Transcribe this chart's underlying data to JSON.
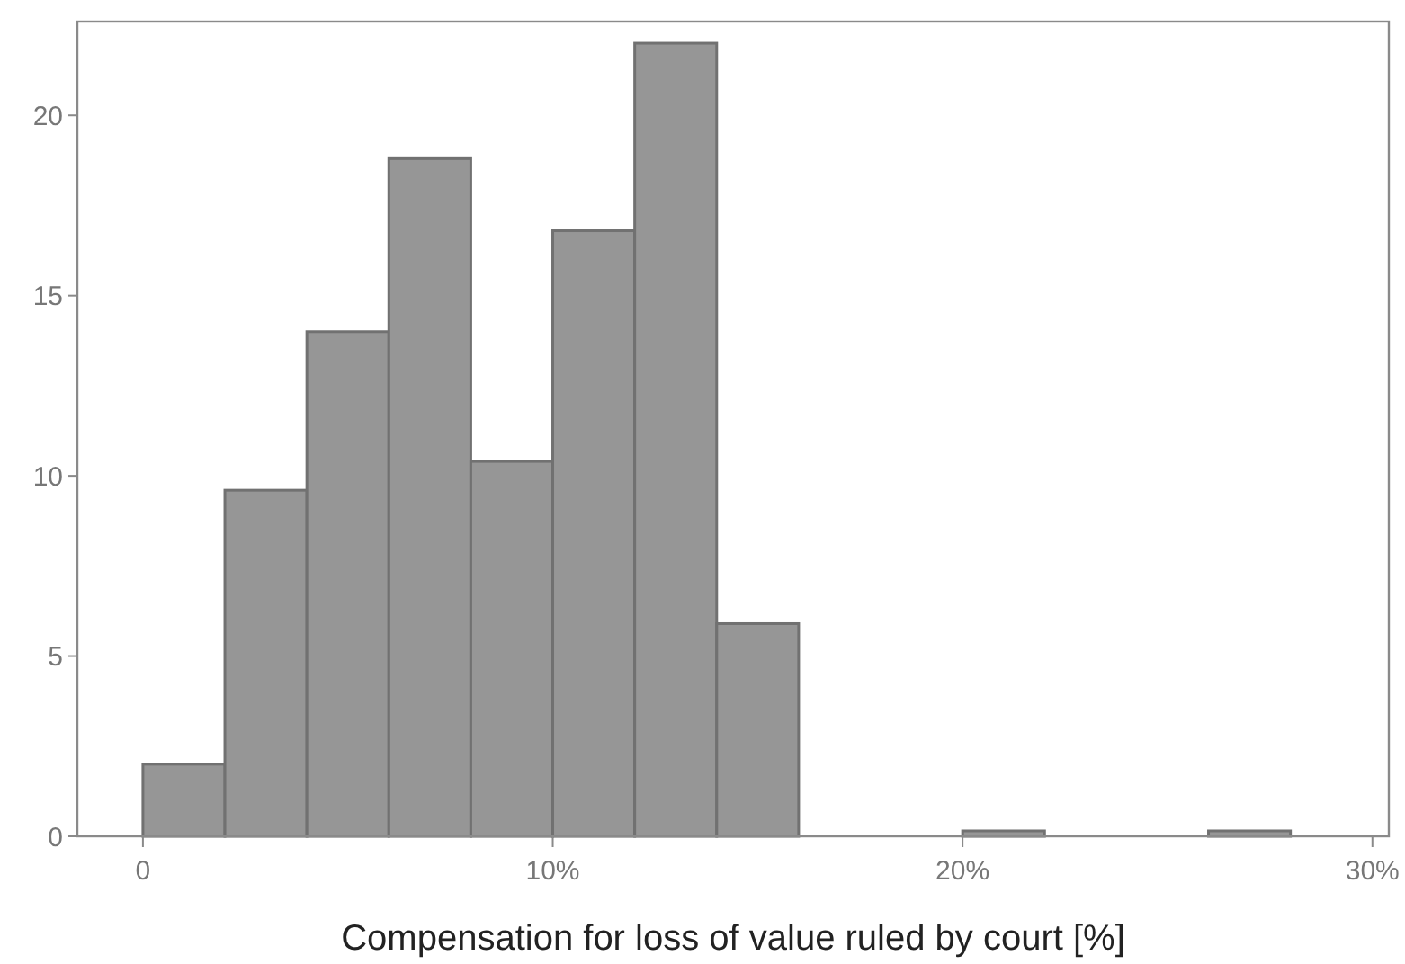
{
  "chart_data": {
    "type": "histogram",
    "xlabel": "Compensation for loss of value ruled by court [%]",
    "bins": [
      0,
      2,
      4,
      6,
      8,
      10,
      12,
      14,
      16,
      18,
      20,
      22,
      24,
      26,
      28
    ],
    "values": [
      2,
      9.6,
      14,
      18.8,
      10.4,
      16.8,
      22,
      5.9,
      0,
      0,
      0.15,
      0,
      0,
      0.15
    ],
    "color": "#969696",
    "xlim": [
      -1.6,
      30.4
    ],
    "xticks": [
      {
        "value": 0,
        "label": "0"
      },
      {
        "value": 10,
        "label": "10%"
      },
      {
        "value": 20,
        "label": "20%"
      },
      {
        "value": 30,
        "label": "30%"
      }
    ],
    "ylim": [
      0,
      22.6
    ],
    "yticks": [
      0,
      5,
      10,
      15,
      20
    ],
    "grid": false
  }
}
